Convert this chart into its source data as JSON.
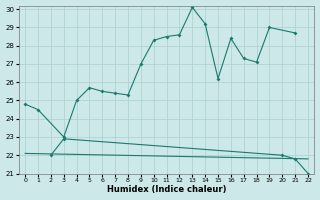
{
  "x": [
    0,
    1,
    2,
    3,
    4,
    5,
    6,
    7,
    8,
    9,
    10,
    11,
    12,
    13,
    14,
    15,
    16,
    17,
    18,
    19,
    20,
    21,
    22
  ],
  "line1": [
    24.8,
    24.5,
    null,
    23.0,
    25.0,
    25.7,
    25.5,
    25.4,
    25.3,
    27.0,
    28.3,
    28.5,
    28.6,
    30.1,
    29.2,
    26.2,
    28.4,
    27.3,
    27.1,
    29.0,
    null,
    28.7,
    null
  ],
  "line2": [
    null,
    null,
    22.0,
    22.9,
    null,
    null,
    null,
    null,
    null,
    null,
    null,
    null,
    null,
    null,
    null,
    null,
    null,
    null,
    null,
    null,
    22.0,
    21.8,
    21.0
  ],
  "line3_x": [
    0,
    22
  ],
  "line3_y": [
    22.1,
    21.8
  ],
  "color": "#1a7a6e",
  "bg_color": "#cce8e8",
  "grid_color": "#aacfcf",
  "xlabel": "Humidex (Indice chaleur)",
  "xlim": [
    -0.5,
    22.5
  ],
  "ylim": [
    21,
    30.2
  ],
  "yticks": [
    21,
    22,
    23,
    24,
    25,
    26,
    27,
    28,
    29,
    30
  ],
  "xticks": [
    0,
    1,
    2,
    3,
    4,
    5,
    6,
    7,
    8,
    9,
    10,
    11,
    12,
    13,
    14,
    15,
    16,
    17,
    18,
    19,
    20,
    21,
    22
  ]
}
